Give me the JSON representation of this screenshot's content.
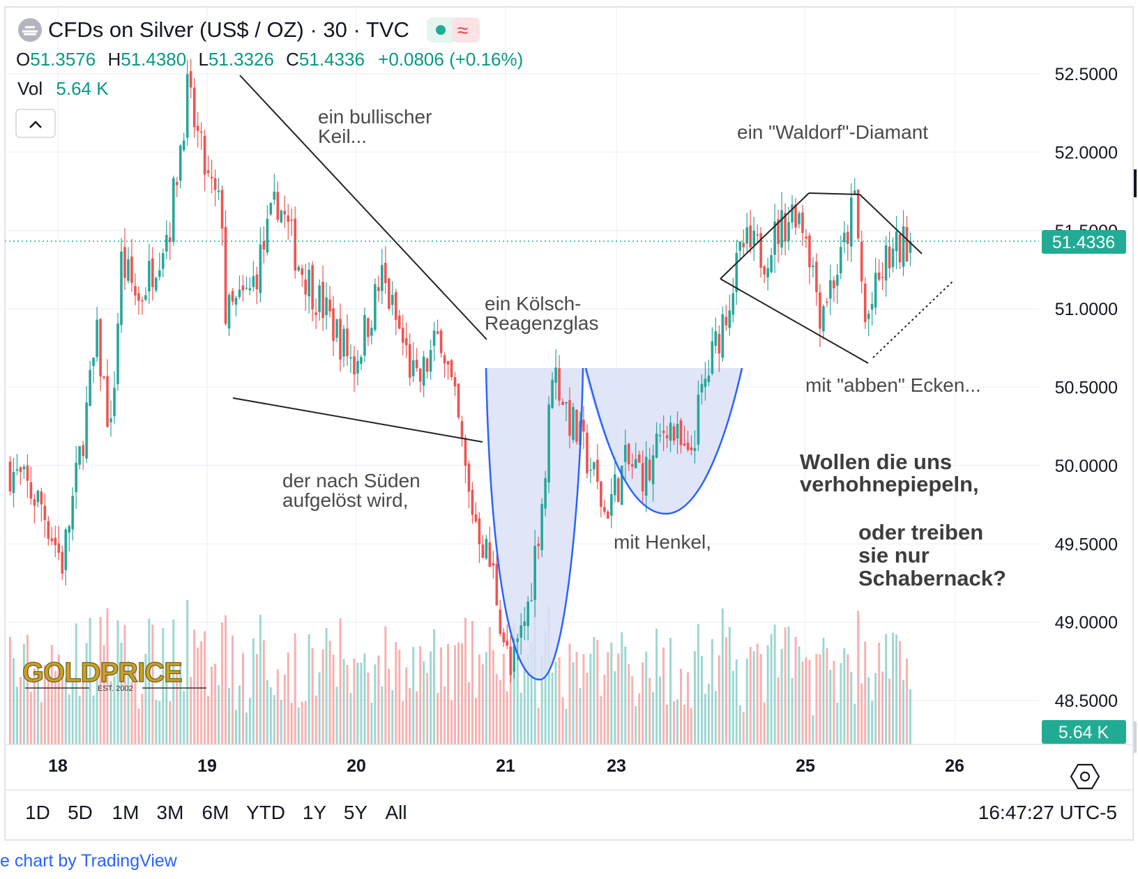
{
  "header": {
    "title": "CFDs on Silver (US$ / OZ) · 30 · TVC",
    "ohlc": {
      "o_label": "O",
      "o_value": "51.3576",
      "h_label": "H",
      "h_value": "51.4380",
      "l_label": "L",
      "l_value": "51.3326",
      "c_label": "C",
      "c_value": "51.4336",
      "change": "+0.0806 (+0.16%)"
    },
    "vol_label": "Vol",
    "vol_value": "5.64 K"
  },
  "price_axis": {
    "ticks": [
      "52.5000",
      "52.0000",
      "51.5000",
      "51.0000",
      "50.5000",
      "50.0000",
      "49.5000",
      "49.0000",
      "48.5000"
    ],
    "current_price_label": "51.4336",
    "volume_label": "5.64 K"
  },
  "time_axis": {
    "labels": [
      "18",
      "19",
      "20",
      "21",
      "23",
      "25",
      "26"
    ]
  },
  "annotations": {
    "wedge": "ein bullischer\nKeil...",
    "koelsch": "ein Kölsch-\nReagenzglas",
    "sued": "der nach Süden\naufgelöst wird,",
    "henkel": "mit Henkel,",
    "diamant": "ein \"Waldorf\"-Diamant",
    "ecken": "mit \"abben\" Ecken...",
    "question1": "Wollen die uns\nverhohnepiepeln,",
    "question2": "oder treiben\nsie nur\nSchabernack?"
  },
  "logo": {
    "text": "GOLDPRICE",
    "est": "EST. 2002"
  },
  "range_bar": {
    "ranges": [
      "1D",
      "5D",
      "1M",
      "3M",
      "6M",
      "YTD",
      "1Y",
      "5Y",
      "All"
    ],
    "clock": "16:47:27 UTC-5"
  },
  "footer": {
    "credit": "e chart by TradingView"
  },
  "colors": {
    "up": "#26a69a",
    "down": "#ef5350",
    "accent": "#22ab94",
    "cup_fill": "#dbe0f7",
    "cup_line": "#2962ff",
    "trendline": "#222222"
  },
  "chart_data": {
    "type": "candlestick",
    "title": "CFDs on Silver (US$ / OZ) · 30 · TVC",
    "x_labels": [
      "18",
      "19",
      "20",
      "21",
      "23",
      "25",
      "26"
    ],
    "ylim": [
      48.3,
      52.7
    ],
    "current_price": 51.4336,
    "last_bar": {
      "open": 51.3576,
      "high": 51.438,
      "low": 51.3326,
      "close": 51.4336,
      "volume": "5.64 K"
    },
    "price_path": [
      [
        0,
        50.0
      ],
      [
        10,
        49.75
      ],
      [
        16,
        49.38
      ],
      [
        20,
        49.9
      ],
      [
        26,
        50.8
      ],
      [
        30,
        50.2
      ],
      [
        33,
        51.3
      ],
      [
        38,
        51.05
      ],
      [
        47,
        51.55
      ],
      [
        52,
        52.38
      ],
      [
        58,
        51.8
      ],
      [
        62,
        51.6
      ],
      [
        63,
        50.95
      ],
      [
        70,
        51.1
      ],
      [
        78,
        51.7
      ],
      [
        84,
        51.3
      ],
      [
        90,
        51.05
      ],
      [
        100,
        50.65
      ],
      [
        108,
        51.2
      ],
      [
        118,
        50.5
      ],
      [
        125,
        50.85
      ],
      [
        130,
        50.25
      ],
      [
        133,
        49.8
      ],
      [
        140,
        49.3
      ],
      [
        145,
        48.65
      ],
      [
        150,
        49.1
      ],
      [
        155,
        49.95
      ],
      [
        157,
        50.65
      ],
      [
        162,
        50.3
      ],
      [
        168,
        50.0
      ],
      [
        172,
        49.7
      ],
      [
        178,
        50.0
      ],
      [
        185,
        49.95
      ],
      [
        190,
        50.3
      ],
      [
        196,
        50.0
      ],
      [
        200,
        50.45
      ],
      [
        205,
        50.85
      ],
      [
        212,
        51.4
      ],
      [
        218,
        51.35
      ],
      [
        222,
        51.5
      ],
      [
        227,
        51.65
      ],
      [
        230,
        51.5
      ],
      [
        234,
        51.0
      ],
      [
        240,
        51.3
      ],
      [
        244,
        51.7
      ],
      [
        247,
        50.9
      ],
      [
        250,
        51.1
      ],
      [
        253,
        51.3
      ],
      [
        259,
        51.43
      ]
    ],
    "bar_count": 260,
    "grid": true,
    "legend": "none"
  }
}
